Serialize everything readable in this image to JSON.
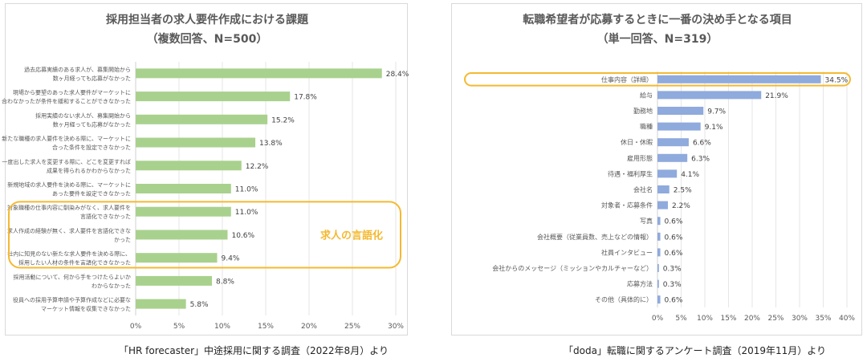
{
  "left_chart": {
    "title_line1": "採用担当者の求人要件作成における課題",
    "title_line2": "（複数回答、N=500）",
    "highlight_label": "求人の言語化",
    "caption": "「HR forecaster」中途採用に関する調査（2022年8月）より",
    "bar_color": "#a9d18e",
    "highlight_color": "#f4b930",
    "chart_data": {
      "type": "bar",
      "orientation": "horizontal",
      "categories": [
        [
          "過去応募実績のある求人が、募集開始から",
          "数ヶ月経っても応募がなかった"
        ],
        [
          "現場から要望のあった求人要件がマーケットに",
          "合わなかったが条件を緩和することができなかった"
        ],
        [
          "採用実績のない求人が、募集開始から",
          "数ヶ月経っても応募がなかった"
        ],
        [
          "新たな職種の求人要件を決める際に、マーケットに",
          "合った条件を設定できなかった"
        ],
        [
          "一度出した求人を変更する際に、どこを変更すれば",
          "成果を得られるかわからなかった"
        ],
        [
          "新規地域の求人要件を決める際に、マーケットに",
          "あった要件を設定できなかった"
        ],
        [
          "対象職種の仕事内容に馴染みがなく、求人要件を",
          "言語化できなかった"
        ],
        [
          "求人作成の経験が無く、求人要件を言語化できな",
          "かった"
        ],
        [
          "社内に知見のない新たな求人要件を決める際に、",
          "採用したい人材の条件を言語化できなかった"
        ],
        [
          "採用活動について、何から手をつけたらよいか",
          "わからなかった"
        ],
        [
          "役員への採用予算申請や予算作成などに必要な",
          "マーケット情報を収集できなかった"
        ]
      ],
      "values": [
        28.4,
        17.8,
        15.2,
        13.8,
        12.2,
        11.0,
        11.0,
        10.6,
        9.4,
        8.8,
        5.8
      ],
      "value_labels": [
        "28.4%",
        "17.8%",
        "15.2%",
        "13.8%",
        "12.2%",
        "11.0%",
        "11.0%",
        "10.6%",
        "9.4%",
        "8.8%",
        "5.8%"
      ],
      "xlim": [
        0,
        30
      ],
      "x_ticks": [
        "0%",
        "5%",
        "10%",
        "15%",
        "20%",
        "25%",
        "30%"
      ],
      "highlight_range": [
        6,
        8
      ]
    }
  },
  "right_chart": {
    "title_line1": "転職希望者が応募するときに一番の決め手となる項目",
    "title_line2": "（単一回答、N=319）",
    "caption": "「doda」転職に関するアンケート調査（2019年11月）より",
    "bar_color": "#8faadc",
    "highlight_color": "#f4b930",
    "chart_data": {
      "type": "bar",
      "orientation": "horizontal",
      "categories": [
        "仕事内容（詳細）",
        "給与",
        "勤務地",
        "職種",
        "休日・休暇",
        "雇用形態",
        "待遇・福利厚生",
        "会社名",
        "対象者・応募条件",
        "写真",
        "会社概要（従業員数、売上などの情報）",
        "社員インタビュー",
        "会社からのメッセージ（ミッションやカルチャーなど）",
        "応募方法",
        "その他（具体的に）"
      ],
      "values": [
        34.5,
        21.9,
        9.7,
        9.1,
        6.6,
        6.3,
        4.1,
        2.5,
        2.2,
        0.6,
        0.6,
        0.6,
        0.3,
        0.3,
        0.6
      ],
      "value_labels": [
        "34.5%",
        "21.9%",
        "9.7%",
        "9.1%",
        "6.6%",
        "6.3%",
        "4.1%",
        "2.5%",
        "2.2%",
        "0.6%",
        "0.6%",
        "0.6%",
        "0.3%",
        "0.3%",
        "0.6%"
      ],
      "xlim": [
        0,
        40
      ],
      "x_ticks": [
        "0%",
        "5%",
        "10%",
        "15%",
        "20%",
        "25%",
        "30%",
        "35%",
        "40%"
      ],
      "highlight_range": [
        0,
        0
      ]
    }
  }
}
